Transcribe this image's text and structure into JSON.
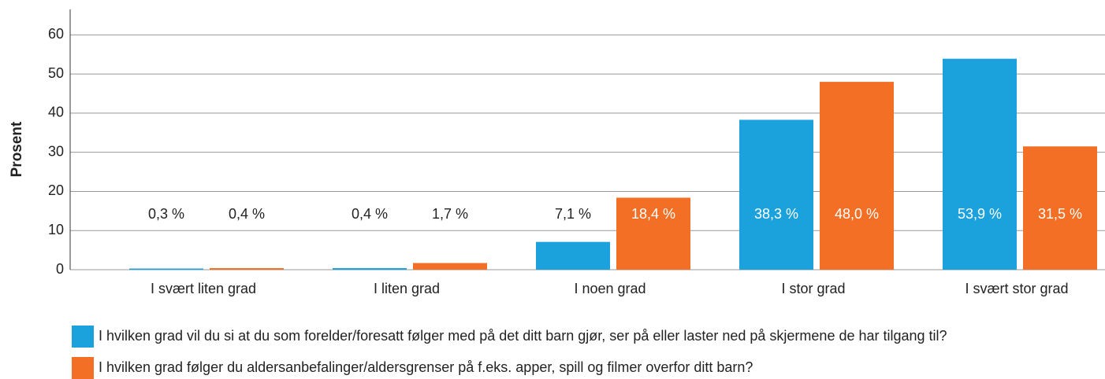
{
  "chart_data": {
    "type": "bar",
    "y_label": "Prosent",
    "categories": [
      "I svært liten grad",
      "I liten grad",
      "I noen grad",
      "I stor grad",
      "I svært stor grad"
    ],
    "series": [
      {
        "name": "I hvilken grad vil du si at du som forelder/foresatt følger med på det ditt barn gjør, ser på eller laster ned på skjermene de har tilgang til?",
        "color": "#1ba1db",
        "values": [
          0.3,
          0.4,
          7.1,
          38.3,
          53.9
        ],
        "value_labels": [
          "0,3 %",
          "0,4 %",
          "7,1 %",
          "38,3 %",
          "53,9 %"
        ]
      },
      {
        "name": "I hvilken grad følger du aldersanbefalinger/aldersgrenser på f.eks. apper, spill og filmer overfor ditt barn?",
        "color": "#f26f25",
        "values": [
          0.4,
          1.7,
          18.4,
          48.0,
          31.5
        ],
        "value_labels": [
          "0,4 %",
          "1,7 %",
          "18,4 %",
          "48,0 %",
          "31,5 %"
        ]
      }
    ],
    "ylim": [
      0,
      66.5
    ],
    "yticks": [
      0,
      10,
      20,
      30,
      40,
      50,
      60
    ],
    "grid": true
  }
}
